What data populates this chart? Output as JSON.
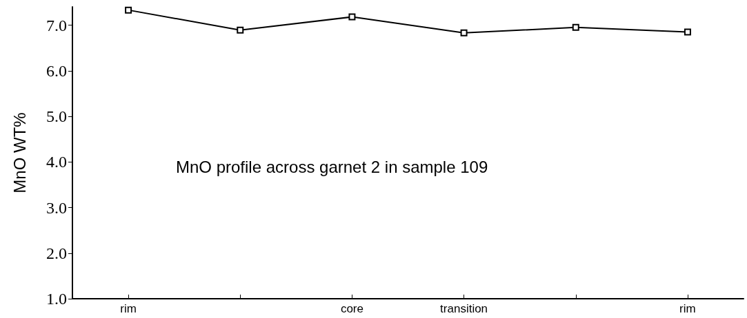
{
  "chart_data": {
    "type": "line",
    "ylabel": "MnO WT%",
    "categories": [
      "rim",
      null,
      "core",
      "transition",
      null,
      "rim"
    ],
    "series": [
      {
        "color": "#000000",
        "values": [
          7.33,
          6.89,
          7.18,
          6.83,
          6.95,
          6.85
        ]
      }
    ],
    "ylim": [
      1,
      7.4
    ],
    "yticks": [
      {
        "value": 1,
        "label": "1.0"
      },
      {
        "value": 2,
        "label": "2.0"
      },
      {
        "value": 3,
        "label": "3.0"
      },
      {
        "value": 4,
        "label": "4.0"
      },
      {
        "value": 5,
        "label": "5.0"
      },
      {
        "value": 6,
        "label": "6.0"
      },
      {
        "value": 7,
        "label": "7.0"
      }
    ],
    "annotations": [
      "MnO profile across garnet 2 in sample 109"
    ],
    "marker": "square",
    "line_style": "solid"
  }
}
